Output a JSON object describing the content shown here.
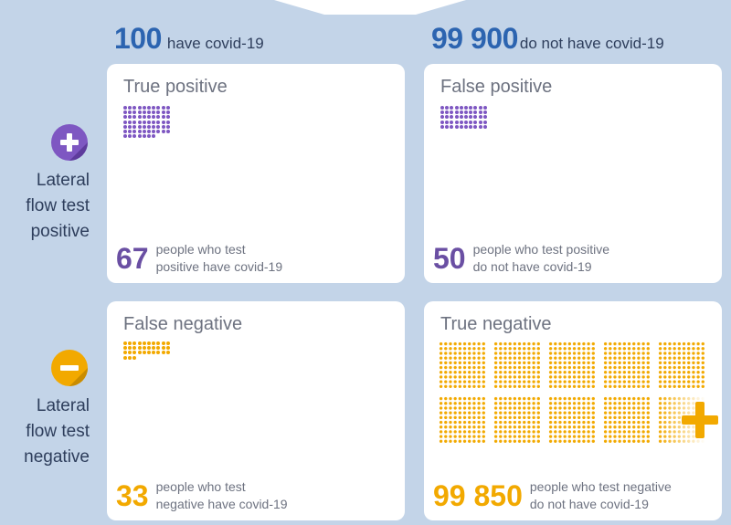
{
  "headers": {
    "covid": {
      "number": "100",
      "text": "have covid-19"
    },
    "no_covid": {
      "number": "99 900",
      "text": "do not have covid-19"
    }
  },
  "rows": {
    "positive": {
      "label_lines": [
        "Lateral",
        "flow test",
        "positive"
      ],
      "icon": "plus-circle-icon",
      "color": "#7e57c2"
    },
    "negative": {
      "label_lines": [
        "Lateral",
        "flow test",
        "negative"
      ],
      "icon": "minus-circle-icon",
      "color": "#f2a900"
    }
  },
  "cards": {
    "true_positive": {
      "title": "True positive",
      "count": "67",
      "desc_lines": [
        "people who test",
        "positive have covid-19"
      ],
      "dots": 67,
      "color": "#6a4fa3"
    },
    "false_positive": {
      "title": "False positive",
      "count": "50",
      "desc_lines": [
        "people who test positive",
        "do not have covid-19"
      ],
      "dots": 50,
      "color": "#6a4fa3"
    },
    "false_negative": {
      "title": "False negative",
      "count": "33",
      "desc_lines": [
        "people who test",
        "negative have covid-19"
      ],
      "dots": 33,
      "color": "#f2a900"
    },
    "true_negative": {
      "title": "True negative",
      "count": "99 850",
      "desc_lines": [
        "people who test negative",
        "do not have covid-19"
      ],
      "dots": 99850,
      "color": "#f2a900"
    }
  }
}
